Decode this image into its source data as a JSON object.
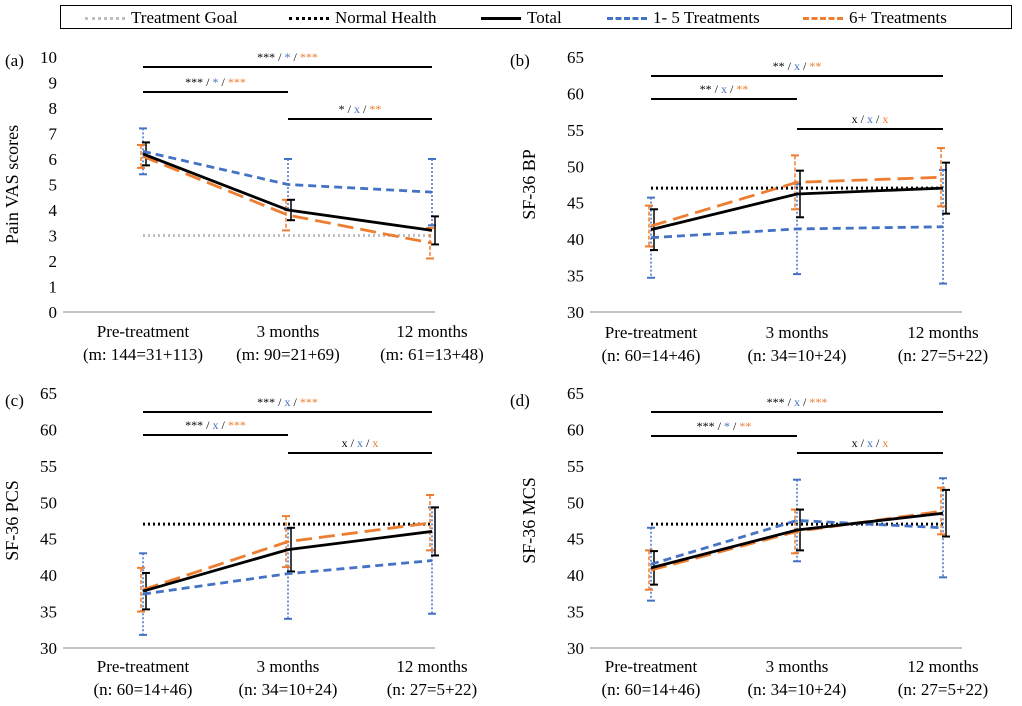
{
  "legend": {
    "entries": [
      {
        "label": "Treatment Goal",
        "color": "#bfbfbf",
        "style": "dotted"
      },
      {
        "label": "Normal Health",
        "color": "#000000",
        "style": "dotted"
      },
      {
        "label": "Total",
        "color": "#000000",
        "style": "solid"
      },
      {
        "label": "1- 5 Treatments",
        "color": "#4472c4",
        "style": "dashed"
      },
      {
        "label": "6+ Treatments",
        "color": "#ed7d31",
        "style": "longdash"
      }
    ]
  },
  "colors": {
    "total": "#000000",
    "low": "#4472c4",
    "high": "#ed7d31",
    "goal": "#bfbfbf",
    "normal": "#000000"
  },
  "chart_data": [
    {
      "type": "line",
      "panel": "(a)",
      "ylabel": "Pain VAS scores",
      "ylim": [
        0,
        10
      ],
      "yticks": [
        "0",
        "1",
        "2",
        "3",
        "4",
        "5",
        "6",
        "7",
        "8",
        "9",
        "10"
      ],
      "categories": [
        "Pre-treatment",
        "3 months",
        "12 months"
      ],
      "category_sublabels": [
        "(m: 144=31+113)",
        "(m: 90=21+69)",
        "(m: 61=13+48)"
      ],
      "reference": {
        "name": "Treatment Goal",
        "value": 3
      },
      "series": [
        {
          "name": "Total",
          "values": [
            6.2,
            4.0,
            3.2
          ],
          "err": [
            0.45,
            0.4,
            0.55
          ]
        },
        {
          "name": "1- 5 Treatments",
          "values": [
            6.3,
            5.0,
            4.7
          ],
          "err": [
            0.9,
            1.0,
            1.3
          ]
        },
        {
          "name": "6+ Treatments",
          "values": [
            6.1,
            3.8,
            2.7
          ],
          "err": [
            0.45,
            0.6,
            0.6
          ]
        }
      ],
      "significance": [
        {
          "from": 0,
          "to": 2,
          "marks": [
            "***",
            "*",
            "***"
          ]
        },
        {
          "from": 0,
          "to": 1,
          "marks": [
            "***",
            "*",
            "***"
          ]
        },
        {
          "from": 1,
          "to": 2,
          "marks": [
            "*",
            "x",
            "**"
          ]
        }
      ]
    },
    {
      "type": "line",
      "panel": "(b)",
      "ylabel": "SF-36 BP",
      "ylim": [
        30,
        65
      ],
      "yticks": [
        "30",
        "35",
        "40",
        "45",
        "50",
        "55",
        "60",
        "65"
      ],
      "categories": [
        "Pre-treatment",
        "3 months",
        "12 months"
      ],
      "category_sublabels": [
        "(n: 60=14+46)",
        "(n: 34=10+24)",
        "(n: 27=5+22)"
      ],
      "reference": {
        "name": "Normal Health",
        "value": 47
      },
      "series": [
        {
          "name": "Total",
          "values": [
            41.3,
            46.2,
            47.0
          ],
          "err": [
            2.8,
            3.2,
            3.5
          ]
        },
        {
          "name": "1- 5 Treatments",
          "values": [
            40.2,
            41.4,
            41.7
          ],
          "err": [
            5.5,
            6.2,
            7.8
          ]
        },
        {
          "name": "6+ Treatments",
          "values": [
            41.8,
            47.8,
            48.5
          ],
          "err": [
            2.8,
            3.7,
            4.0
          ]
        }
      ],
      "significance": [
        {
          "from": 0,
          "to": 2,
          "marks": [
            "**",
            "x",
            "**"
          ]
        },
        {
          "from": 0,
          "to": 1,
          "marks": [
            "**",
            "x",
            "**"
          ]
        },
        {
          "from": 1,
          "to": 2,
          "marks": [
            "x",
            "x",
            "x"
          ]
        }
      ]
    },
    {
      "type": "line",
      "panel": "(c)",
      "ylabel": "SF-36 PCS",
      "ylim": [
        30,
        65
      ],
      "yticks": [
        "30",
        "35",
        "40",
        "45",
        "50",
        "55",
        "60",
        "65"
      ],
      "categories": [
        "Pre-treatment",
        "3 months",
        "12 months"
      ],
      "category_sublabels": [
        "(n: 60=14+46)",
        "(n: 34=10+24)",
        "(n: 27=5+22)"
      ],
      "reference": {
        "name": "Normal Health",
        "value": 47
      },
      "series": [
        {
          "name": "Total",
          "values": [
            37.8,
            43.5,
            46.0
          ],
          "err": [
            2.5,
            3.0,
            3.3
          ]
        },
        {
          "name": "1- 5 Treatments",
          "values": [
            37.4,
            40.2,
            42.0
          ],
          "err": [
            5.6,
            6.2,
            7.3
          ]
        },
        {
          "name": "6+ Treatments",
          "values": [
            38.0,
            44.6,
            47.2
          ],
          "err": [
            3.0,
            3.5,
            3.8
          ]
        }
      ],
      "significance": [
        {
          "from": 0,
          "to": 2,
          "marks": [
            "***",
            "x",
            "***"
          ]
        },
        {
          "from": 0,
          "to": 1,
          "marks": [
            "***",
            "x",
            "***"
          ]
        },
        {
          "from": 1,
          "to": 2,
          "marks": [
            "x",
            "x",
            "x"
          ]
        }
      ]
    },
    {
      "type": "line",
      "panel": "(d)",
      "ylabel": "SF-36 MCS",
      "ylim": [
        30,
        65
      ],
      "yticks": [
        "30",
        "35",
        "40",
        "45",
        "50",
        "55",
        "60",
        "65"
      ],
      "categories": [
        "Pre-treatment",
        "3 months",
        "12 months"
      ],
      "category_sublabels": [
        "(n: 60=14+46)",
        "(n: 34=10+24)",
        "(n: 27=5+22)"
      ],
      "reference": {
        "name": "Normal Health",
        "value": 47
      },
      "series": [
        {
          "name": "Total",
          "values": [
            41.0,
            46.2,
            48.5
          ],
          "err": [
            2.3,
            2.8,
            3.2
          ]
        },
        {
          "name": "1- 5 Treatments",
          "values": [
            41.5,
            47.5,
            46.5
          ],
          "err": [
            5.0,
            5.6,
            6.8
          ]
        },
        {
          "name": "6+ Treatments",
          "values": [
            40.7,
            46.0,
            48.8
          ],
          "err": [
            2.7,
            3.0,
            3.2
          ]
        }
      ],
      "significance": [
        {
          "from": 0,
          "to": 2,
          "marks": [
            "***",
            "x",
            "***"
          ]
        },
        {
          "from": 0,
          "to": 1,
          "marks": [
            "***",
            "*",
            "**"
          ]
        },
        {
          "from": 1,
          "to": 2,
          "marks": [
            "x",
            "x",
            "x"
          ]
        }
      ]
    }
  ]
}
